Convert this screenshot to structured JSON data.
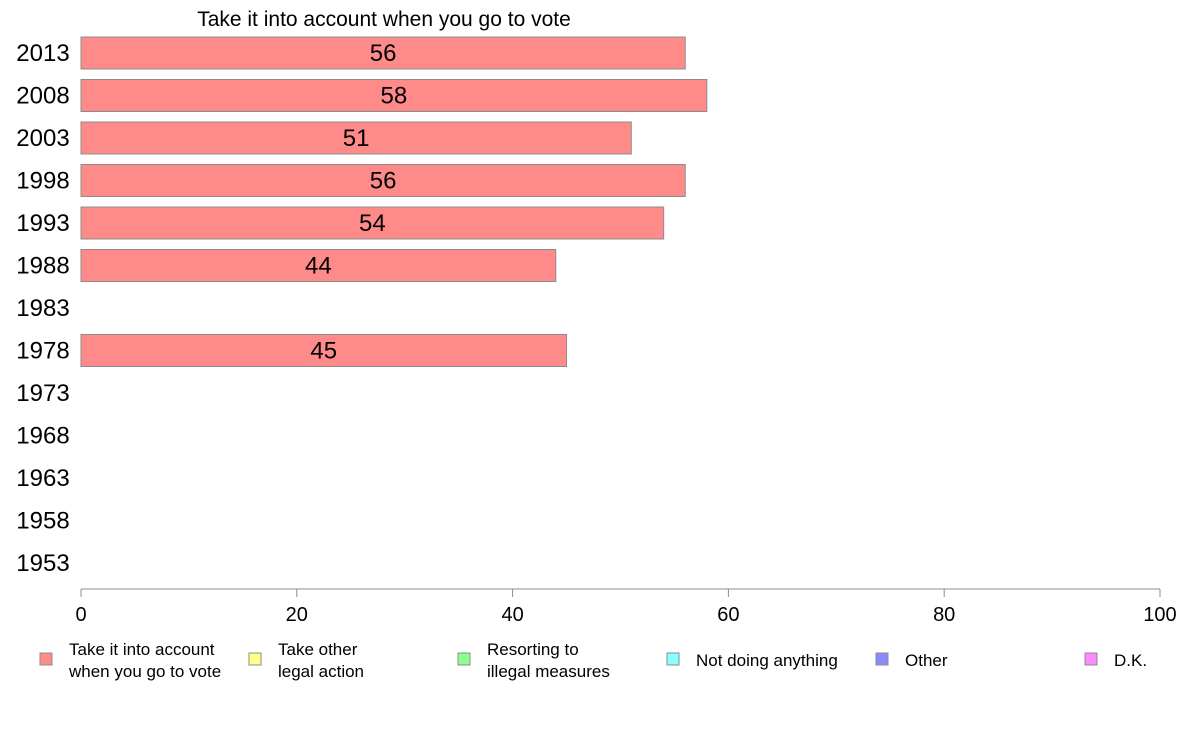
{
  "chart_data": {
    "type": "bar",
    "orientation": "horizontal",
    "title": "Take it into account when you go to vote",
    "categories": [
      "2013",
      "2008",
      "2003",
      "1998",
      "1993",
      "1988",
      "1983",
      "1978",
      "1973",
      "1968",
      "1963",
      "1958",
      "1953"
    ],
    "series": [
      {
        "name": "Take it into account when you go to vote",
        "color": "#ff8a8a",
        "values": [
          56,
          58,
          51,
          56,
          54,
          44,
          null,
          45,
          null,
          null,
          null,
          null,
          null
        ],
        "labels": [
          "56",
          "58",
          "51",
          "56",
          "54",
          "44",
          "",
          "45",
          "",
          "",
          "",
          "",
          ""
        ]
      }
    ],
    "xlim": [
      0,
      100
    ],
    "xticks": [
      "0",
      "20",
      "40",
      "60",
      "80",
      "100"
    ],
    "grid": false,
    "legend_position": "bottom",
    "legend": [
      {
        "lines": [
          "Take it into account",
          "when you go to vote"
        ],
        "color": "#ff8a8a"
      },
      {
        "lines": [
          "Take other",
          "legal action"
        ],
        "color": "#ffff8a"
      },
      {
        "lines": [
          "Resorting to",
          "illegal measures"
        ],
        "color": "#8aff8a"
      },
      {
        "lines": [
          "Not doing anything"
        ],
        "color": "#8affff"
      },
      {
        "lines": [
          "Other"
        ],
        "color": "#8a8aff"
      },
      {
        "lines": [
          "D.K."
        ],
        "color": "#ff8aff"
      }
    ]
  }
}
